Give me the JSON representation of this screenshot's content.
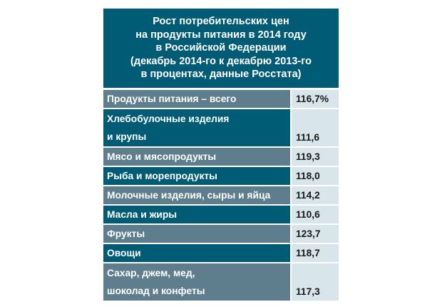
{
  "chart_data": {
    "type": "table",
    "title_lines": [
      "Рост потребительских цен",
      "на продукты питания в 2014 году",
      "в Российской Федерации",
      "(декабрь 2014-го к декабрю 2013-го",
      "в процентах, данные Росстата)"
    ],
    "rows": [
      {
        "label_lines": [
          "Продукты питания – всего"
        ],
        "value": "116,7%",
        "shade": "light"
      },
      {
        "label_lines": [
          "Хлебобулочные изделия",
          "и крупы"
        ],
        "value": "111,6",
        "shade": "dark"
      },
      {
        "label_lines": [
          "Мясо и мясопродукты"
        ],
        "value": "119,3",
        "shade": "light"
      },
      {
        "label_lines": [
          "Рыба и морепродукты"
        ],
        "value": "118,0",
        "shade": "dark"
      },
      {
        "label_lines": [
          "Молочные изделия, сыры и яйца"
        ],
        "value": "114,2",
        "shade": "light"
      },
      {
        "label_lines": [
          "Масла и жиры"
        ],
        "value": "110,6",
        "shade": "dark"
      },
      {
        "label_lines": [
          "Фрукты"
        ],
        "value": "123,7",
        "shade": "light"
      },
      {
        "label_lines": [
          "Овощи"
        ],
        "value": "118,7",
        "shade": "dark"
      },
      {
        "label_lines": [
          "Сахар, джем, мед,",
          "шоколад и конфеты"
        ],
        "value": "117,3",
        "shade": "light"
      }
    ],
    "colors": {
      "header": "#005c74",
      "row_dark": "#005c74",
      "row_light": "#5e7e8e",
      "value_cell": "#d8e6eb"
    }
  }
}
